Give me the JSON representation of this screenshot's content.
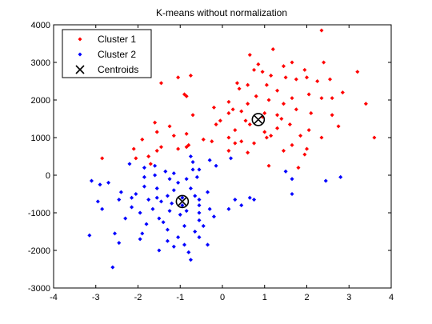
{
  "chart_data": {
    "type": "scatter",
    "title": "K-means without normalization",
    "xlabel": "",
    "ylabel": "",
    "xlim": [
      -4,
      4
    ],
    "ylim": [
      -3000,
      4000
    ],
    "xticks": [
      -4,
      -3,
      -2,
      -1,
      0,
      1,
      2,
      3,
      4
    ],
    "yticks": [
      -3000,
      -2000,
      -1000,
      0,
      1000,
      2000,
      3000,
      4000
    ],
    "grid": false,
    "legend_position": "top-left",
    "series": [
      {
        "name": "Cluster 1",
        "color": "#ff0000",
        "marker": "dot",
        "points": [
          [
            2.35,
            3850
          ],
          [
            1.2,
            3350
          ],
          [
            0.65,
            3200
          ],
          [
            2.4,
            3000
          ],
          [
            1.65,
            3000
          ],
          [
            0.85,
            2950
          ],
          [
            1.45,
            2900
          ],
          [
            0.75,
            2800
          ],
          [
            1.95,
            2800
          ],
          [
            0.95,
            2750
          ],
          [
            1.15,
            2650
          ],
          [
            2.0,
            2600
          ],
          [
            3.2,
            2750
          ],
          [
            -0.75,
            2650
          ],
          [
            -1.05,
            2600
          ],
          [
            1.5,
            2600
          ],
          [
            1.75,
            2550
          ],
          [
            2.25,
            2500
          ],
          [
            2.55,
            2550
          ],
          [
            0.35,
            2450
          ],
          [
            0.6,
            2400
          ],
          [
            1.05,
            2400
          ],
          [
            -1.45,
            2450
          ],
          [
            0.4,
            2300
          ],
          [
            1.3,
            2250
          ],
          [
            2.85,
            2200
          ],
          [
            2.05,
            2150
          ],
          [
            -0.9,
            2150
          ],
          [
            -0.85,
            2100
          ],
          [
            0.8,
            2100
          ],
          [
            1.65,
            2050
          ],
          [
            2.35,
            2050
          ],
          [
            2.6,
            2050
          ],
          [
            1.1,
            2000
          ],
          [
            1.45,
            1900
          ],
          [
            0.15,
            1950
          ],
          [
            3.4,
            1900
          ],
          [
            0.6,
            1900
          ],
          [
            -0.2,
            1800
          ],
          [
            0.25,
            1750
          ],
          [
            1.75,
            1750
          ],
          [
            0.45,
            1700
          ],
          [
            2.1,
            1650
          ],
          [
            -0.7,
            1600
          ],
          [
            0.15,
            1650
          ],
          [
            1.0,
            1650
          ],
          [
            1.3,
            1600
          ],
          [
            2.6,
            1600
          ],
          [
            0.95,
            1550
          ],
          [
            1.4,
            1500
          ],
          [
            -0.05,
            1450
          ],
          [
            0.55,
            1450
          ],
          [
            -0.15,
            1350
          ],
          [
            -1.6,
            1400
          ],
          [
            -1.25,
            1300
          ],
          [
            0.65,
            1350
          ],
          [
            1.6,
            1350
          ],
          [
            2.75,
            1300
          ],
          [
            1.3,
            1250
          ],
          [
            0.3,
            1200
          ],
          [
            1.0,
            1150
          ],
          [
            2.05,
            1200
          ],
          [
            -1.55,
            1150
          ],
          [
            -0.85,
            1100
          ],
          [
            -1.15,
            1050
          ],
          [
            1.15,
            1050
          ],
          [
            0.15,
            1000
          ],
          [
            1.05,
            1000
          ],
          [
            2.35,
            1000
          ],
          [
            1.85,
            1050
          ],
          [
            3.6,
            1000
          ],
          [
            -1.9,
            950
          ],
          [
            -0.45,
            950
          ],
          [
            -0.25,
            900
          ],
          [
            0.3,
            850
          ],
          [
            0.75,
            850
          ],
          [
            -0.8,
            800
          ],
          [
            -0.85,
            750
          ],
          [
            1.65,
            800
          ],
          [
            2.0,
            700
          ],
          [
            -1.05,
            700
          ],
          [
            -1.45,
            750
          ],
          [
            -1.55,
            650
          ],
          [
            1.45,
            650
          ],
          [
            -2.1,
            700
          ],
          [
            0.6,
            600
          ],
          [
            1.95,
            550
          ],
          [
            -1.75,
            500
          ],
          [
            -2.05,
            450
          ],
          [
            -2.85,
            450
          ],
          [
            -1.7,
            300
          ],
          [
            1.1,
            250
          ],
          [
            1.8,
            200
          ],
          [
            0.15,
            650
          ],
          [
            0.45,
            900
          ]
        ]
      },
      {
        "name": "Cluster 2",
        "color": "#0000ff",
        "marker": "dot",
        "points": [
          [
            -0.75,
            500
          ],
          [
            -0.3,
            400
          ],
          [
            -0.15,
            250
          ],
          [
            0.2,
            450
          ],
          [
            -0.7,
            350
          ],
          [
            -2.2,
            300
          ],
          [
            -1.6,
            250
          ],
          [
            -1.85,
            200
          ],
          [
            -0.55,
            150
          ],
          [
            -1.35,
            100
          ],
          [
            -1.15,
            50
          ],
          [
            -1.6,
            0
          ],
          [
            -1.25,
            -100
          ],
          [
            -0.6,
            -50
          ],
          [
            -0.85,
            -100
          ],
          [
            -3.1,
            -150
          ],
          [
            -2.7,
            -200
          ],
          [
            -1.85,
            -300
          ],
          [
            -1.55,
            -350
          ],
          [
            -0.75,
            -350
          ],
          [
            -1.15,
            -400
          ],
          [
            -0.35,
            -450
          ],
          [
            -2.4,
            -450
          ],
          [
            -2.05,
            -500
          ],
          [
            -1.3,
            -550
          ],
          [
            -1.55,
            -600
          ],
          [
            -0.65,
            -550
          ],
          [
            -0.95,
            -600
          ],
          [
            -2.45,
            -650
          ],
          [
            -1.75,
            -650
          ],
          [
            -1.45,
            -700
          ],
          [
            -2.95,
            -700
          ],
          [
            -0.55,
            -650
          ],
          [
            -1.2,
            -750
          ],
          [
            -0.95,
            -800
          ],
          [
            -0.55,
            -800
          ],
          [
            -2.15,
            -850
          ],
          [
            -2.85,
            -900
          ],
          [
            -1.65,
            -900
          ],
          [
            -1.25,
            -950
          ],
          [
            -0.85,
            -950
          ],
          [
            -0.3,
            -900
          ],
          [
            0.15,
            -900
          ],
          [
            0.45,
            -800
          ],
          [
            0.3,
            -650
          ],
          [
            0.65,
            -600
          ],
          [
            0.75,
            -650
          ],
          [
            1.65,
            -500
          ],
          [
            -1.95,
            -1000
          ],
          [
            -1.0,
            -1050
          ],
          [
            -0.2,
            -1100
          ],
          [
            -1.5,
            -1150
          ],
          [
            -2.3,
            -1150
          ],
          [
            -1.4,
            -1250
          ],
          [
            -0.55,
            -1200
          ],
          [
            -1.8,
            -1300
          ],
          [
            -0.9,
            -1350
          ],
          [
            -0.45,
            -1350
          ],
          [
            -1.3,
            -1450
          ],
          [
            -0.65,
            -1500
          ],
          [
            -2.55,
            -1550
          ],
          [
            -3.15,
            -1600
          ],
          [
            -1.05,
            -1650
          ],
          [
            -0.55,
            -1650
          ],
          [
            -1.95,
            -1700
          ],
          [
            -1.3,
            -1750
          ],
          [
            -2.45,
            -1800
          ],
          [
            -0.9,
            -1850
          ],
          [
            -1.15,
            -1900
          ],
          [
            -0.35,
            -1850
          ],
          [
            -1.5,
            -2000
          ],
          [
            -0.8,
            -2050
          ],
          [
            -0.75,
            -2250
          ],
          [
            -2.6,
            -2450
          ],
          [
            2.8,
            -50
          ],
          [
            1.65,
            -100
          ],
          [
            1.5,
            100
          ],
          [
            2.45,
            -150
          ],
          [
            -2.9,
            -250
          ],
          [
            -1.85,
            -50
          ],
          [
            -0.7,
            150
          ],
          [
            -1.05,
            -200
          ],
          [
            -2.15,
            -600
          ],
          [
            -0.55,
            -1000
          ],
          [
            -1.9,
            -1550
          ]
        ]
      },
      {
        "name": "Centroids",
        "color": "#000000",
        "marker": "x",
        "points": [
          [
            0.85,
            1480
          ],
          [
            -0.95,
            -700
          ]
        ]
      }
    ],
    "legend": [
      "Cluster 1",
      "Cluster 2",
      "Centroids"
    ]
  }
}
